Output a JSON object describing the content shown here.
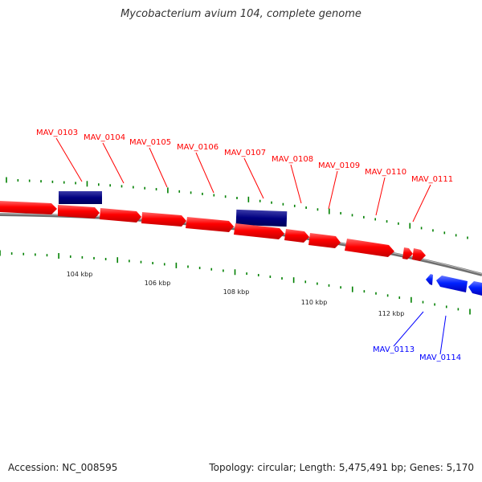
{
  "title": "Mycobacterium avium 104, complete genome",
  "footer": {
    "accession": "Accession: NC_008595",
    "summary": "Topology: circular; Length: 5,475,491 bp; Genes: 5,170"
  },
  "colors": {
    "forward_gene": "#ff0000",
    "reverse_gene": "#0000ff",
    "feature_block": "#00008b",
    "backbone": "#808080",
    "gc_tick": "#008000",
    "forward_label": "#ff0000",
    "reverse_label": "#0000ff",
    "scale_label": "#222222"
  },
  "scale_labels": [
    "104 kbp",
    "106 kbp",
    "108 kbp",
    "110 kbp",
    "112 kbp"
  ],
  "forward_gene_labels": [
    "MAV_0103",
    "MAV_0104",
    "MAV_0105",
    "MAV_0106",
    "MAV_0107",
    "MAV_0108",
    "MAV_0109",
    "MAV_0110",
    "MAV_0111"
  ],
  "reverse_gene_labels": [
    "MAV_0113",
    "MAV_0114"
  ]
}
